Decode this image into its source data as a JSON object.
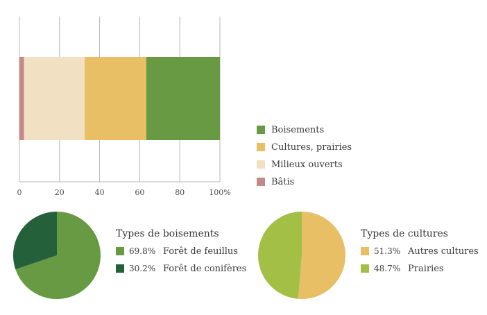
{
  "chart_data": [
    {
      "type": "bar",
      "orientation": "horizontal-stacked",
      "xlim": [
        0,
        100
      ],
      "ticks": [
        "0",
        "20",
        "40",
        "60",
        "80",
        "100%"
      ],
      "grid": true,
      "legend_position": "right",
      "series": [
        {
          "name": "Bâtis",
          "value": 2.3,
          "color": "#c48a87"
        },
        {
          "name": "Milieux ouverts",
          "value": 30.2,
          "color": "#f2e0c2"
        },
        {
          "name": "Cultures, prairies",
          "value": 30.8,
          "color": "#e8bf65"
        },
        {
          "name": "Boisements",
          "value": 36.7,
          "color": "#679a43"
        }
      ],
      "legend_order": [
        "Boisements",
        "Cultures, prairies",
        "Milieux ouverts",
        "Bâtis"
      ]
    },
    {
      "type": "pie",
      "title": "Types de boisements",
      "slices": [
        {
          "pct_label": "69.8%",
          "label": "Forêt de feuillus",
          "value": 69.8,
          "color": "#679a43"
        },
        {
          "pct_label": "30.2%",
          "label": "Forêt de conifères",
          "value": 30.2,
          "color": "#24603a"
        }
      ]
    },
    {
      "type": "pie",
      "title": "Types de cultures",
      "slices": [
        {
          "pct_label": "51.3%",
          "label": "Autres cultures",
          "value": 51.3,
          "color": "#e8bf65"
        },
        {
          "pct_label": "48.7%",
          "label": "Prairies",
          "value": 48.7,
          "color": "#a3bf45"
        }
      ]
    }
  ]
}
